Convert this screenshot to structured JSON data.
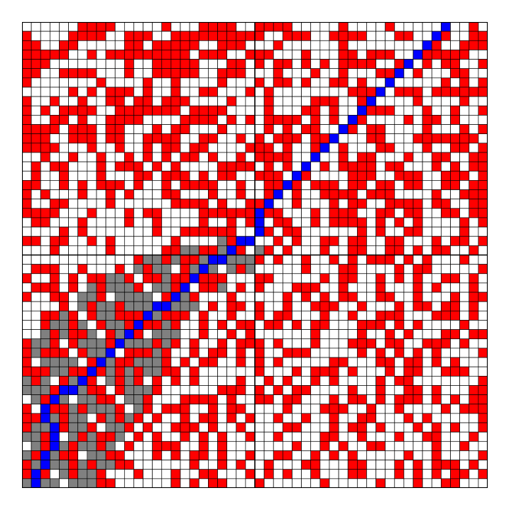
{
  "board": {
    "rows": 50,
    "cols": 50,
    "colors": {
      "empty": "#ffffff",
      "obstacle": "#ff0000",
      "explored": "#808080",
      "path": "#0000ff",
      "gridline": "#000000"
    },
    "legend": {
      ".": "empty",
      "#": "obstacle",
      "g": "explored",
      "b": "path"
    },
    "cells": [
      "......####.....#...####..####.....#....#.....#..#.",
      "#....####..###..##########..###..####...##..##..##",
      "##..##.....##.#####..###...#......#........##..###",
      "#####..#.#########.###..###...#...##.###...#####..",
      "###........#..#####...##.#.##.#.#.####..#..#.##..#",
      "##..####...#..#####..###...#...#..#...##..#...##..",
      "#.......#....#..#....#...#.##.#..##.#..#.....#.#.#",
      ".....#.#.###.#..#..##...#.#........###..###.######",
      "#..#..#..##.##.###....#...#....###..#.....#....#..",
      "#.#.####..#######.####....#...##.#...###...#..#..#",
      "#..##.#..####....####.#.#.####.#.#.##....#.##.#...",
      "####.###.##...#.##...#....#.#.##...#.##....#...#.#",
      "###..###.##..####..##..#.#.###.###...##...#######.",
      "####...#..#..#.##.##....###.#..#..#...##...#..##.#",
      "..#..#..#..#.#.#.##.#..#.####..#..#.##...#..##..##",
      ".#.##...#.###.#.#....####.#.#.#.#.####.##...#.#.##",
      ".#..#...#...##.###.#.##..###..#....###..###..###.#",
      "##..#.#.###.#..#.####..#..####.###.##.##.##..##.##",
      "#.#...#..#.#...##...#..#..#..#..####.###....#..###",
      "#..##....#......####.#..###..#...#.##..####.##..##",
      "####...#...#.##....#########...#.###..##.##..##.##",
      ".##...#....#..#....#..#.##.##..#.####.#.#.#....#.#",
      "....#.#.......#..######..##.##......#.#..##....#..",
      "##.##..#.#......#.....#.#..#.#..##.##..##...#.##.#",
      "...#.....#.....##..##..#..#.#...#..##..##.#.##..#.",
      "............#..#.##.##...#.#..#..#.#.###.#.#...#..",
      ".###..#...#..#...#.#...#......#...##....#.##.....#",
      "#..#.#.##..#.##.##.###...##.....#.##..#.#.#..##.#.",
      ".###.#..#...#...##.##..#.#...###..#...#...#.#...#.",
      "#..##...#......#..#...#.....#.#.#.##..##..#...#.##",
      "....#..#..#.........#.##.#..#..###..#...#.##.##.#.",
      "..##.#.#..###..###.#..#..#.##...#..#..###...###.#.",
      "..#..#..#..#.##.#..#.#.##.##.#.##...###.#.#....#..",
      "...#.##..#.##......#..#.#......#....#..#.#...##.##",
      "#..#.#...#....#.#.#..#.###.#...#...###.##..###.#..",
      "#.###.#....###.#..#.##.#.#..###.....#.#.#.#.#....#",
      "#......#..##...#.#.##..#.#.#.....##...##.##.#.#...",
      "###..##.#.#.#..##.#......#...#.###.#...#.##..###..",
      ".#..#.##..#.#.#.#.#....#..#.#..#.#....#.##.......#",
      "...#...##.#...#......###.#.#.##....#..#..##.#...##",
      "..#.....##...#...####.#..##.##...#.##.#.###.#.#.##",
      "#..##.#...#..#.###..#.##....#...###..#..#....#.###",
      "##..#...#.#.#.#..#.##.#.#..#..#..#..##...#.#.....#",
      "#...#..#...#.#..###.#..#....##...#.##.#...#.#.#..#",
      "..##..#.##..#.#..#.#.#..#..#....##..#...#..##...#.",
      "..#..#..#..#..###..#.#.......#..#.#..##.....#..#..",
      ".#..##...##...#.#.##.#..#..##..#.#.#.....#..#....#",
      "#.#..#.#..##......#..#.#..#...##...##...#.#.###.#.",
      "#.#..#..#...#...#..##...#.#.#..#...##...#.#.#.##.#",
      ".#......##......#.#.##...#......#.....#...#..##..."
    ]
  }
}
